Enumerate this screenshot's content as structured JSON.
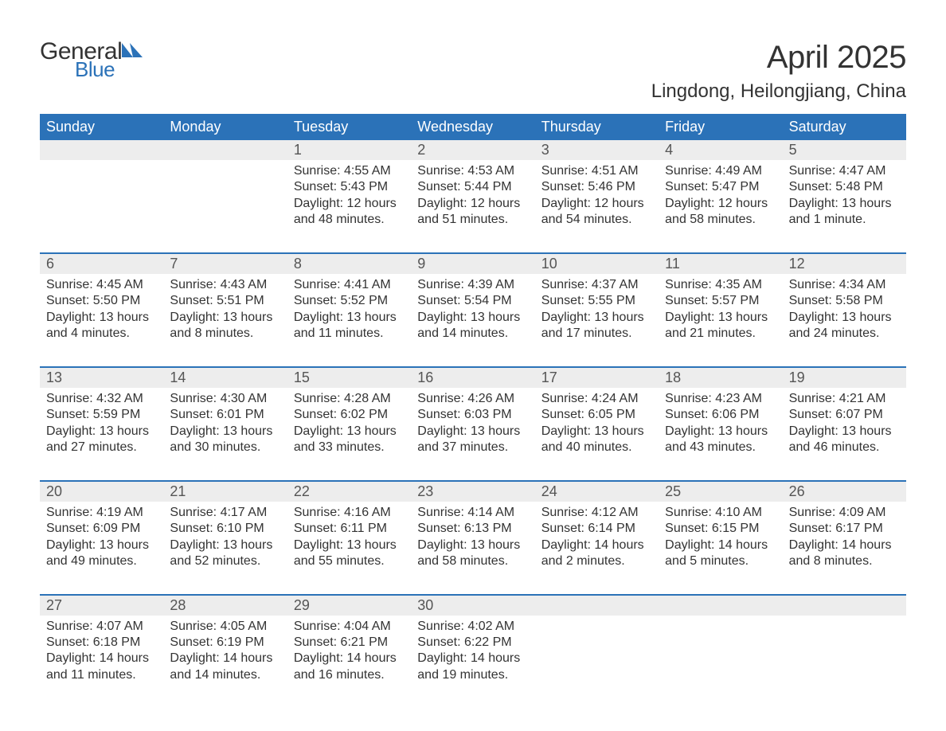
{
  "logo": {
    "word1": "General",
    "word2": "Blue",
    "icon_color": "#2b72b8"
  },
  "title": "April 2025",
  "location": "Lingdong, Heilongjiang, China",
  "colors": {
    "header_bg": "#2b72b8",
    "header_text": "#ffffff",
    "strip_bg": "#ededed",
    "body_text": "#333333",
    "date_text": "#555555",
    "rule": "#2b72b8",
    "page_bg": "#ffffff"
  },
  "day_headers": [
    "Sunday",
    "Monday",
    "Tuesday",
    "Wednesday",
    "Thursday",
    "Friday",
    "Saturday"
  ],
  "weeks": [
    [
      null,
      null,
      {
        "d": "1",
        "sr": "Sunrise: 4:55 AM",
        "ss": "Sunset: 5:43 PM",
        "dl1": "Daylight: 12 hours",
        "dl2": "and 48 minutes."
      },
      {
        "d": "2",
        "sr": "Sunrise: 4:53 AM",
        "ss": "Sunset: 5:44 PM",
        "dl1": "Daylight: 12 hours",
        "dl2": "and 51 minutes."
      },
      {
        "d": "3",
        "sr": "Sunrise: 4:51 AM",
        "ss": "Sunset: 5:46 PM",
        "dl1": "Daylight: 12 hours",
        "dl2": "and 54 minutes."
      },
      {
        "d": "4",
        "sr": "Sunrise: 4:49 AM",
        "ss": "Sunset: 5:47 PM",
        "dl1": "Daylight: 12 hours",
        "dl2": "and 58 minutes."
      },
      {
        "d": "5",
        "sr": "Sunrise: 4:47 AM",
        "ss": "Sunset: 5:48 PM",
        "dl1": "Daylight: 13 hours",
        "dl2": "and 1 minute."
      }
    ],
    [
      {
        "d": "6",
        "sr": "Sunrise: 4:45 AM",
        "ss": "Sunset: 5:50 PM",
        "dl1": "Daylight: 13 hours",
        "dl2": "and 4 minutes."
      },
      {
        "d": "7",
        "sr": "Sunrise: 4:43 AM",
        "ss": "Sunset: 5:51 PM",
        "dl1": "Daylight: 13 hours",
        "dl2": "and 8 minutes."
      },
      {
        "d": "8",
        "sr": "Sunrise: 4:41 AM",
        "ss": "Sunset: 5:52 PM",
        "dl1": "Daylight: 13 hours",
        "dl2": "and 11 minutes."
      },
      {
        "d": "9",
        "sr": "Sunrise: 4:39 AM",
        "ss": "Sunset: 5:54 PM",
        "dl1": "Daylight: 13 hours",
        "dl2": "and 14 minutes."
      },
      {
        "d": "10",
        "sr": "Sunrise: 4:37 AM",
        "ss": "Sunset: 5:55 PM",
        "dl1": "Daylight: 13 hours",
        "dl2": "and 17 minutes."
      },
      {
        "d": "11",
        "sr": "Sunrise: 4:35 AM",
        "ss": "Sunset: 5:57 PM",
        "dl1": "Daylight: 13 hours",
        "dl2": "and 21 minutes."
      },
      {
        "d": "12",
        "sr": "Sunrise: 4:34 AM",
        "ss": "Sunset: 5:58 PM",
        "dl1": "Daylight: 13 hours",
        "dl2": "and 24 minutes."
      }
    ],
    [
      {
        "d": "13",
        "sr": "Sunrise: 4:32 AM",
        "ss": "Sunset: 5:59 PM",
        "dl1": "Daylight: 13 hours",
        "dl2": "and 27 minutes."
      },
      {
        "d": "14",
        "sr": "Sunrise: 4:30 AM",
        "ss": "Sunset: 6:01 PM",
        "dl1": "Daylight: 13 hours",
        "dl2": "and 30 minutes."
      },
      {
        "d": "15",
        "sr": "Sunrise: 4:28 AM",
        "ss": "Sunset: 6:02 PM",
        "dl1": "Daylight: 13 hours",
        "dl2": "and 33 minutes."
      },
      {
        "d": "16",
        "sr": "Sunrise: 4:26 AM",
        "ss": "Sunset: 6:03 PM",
        "dl1": "Daylight: 13 hours",
        "dl2": "and 37 minutes."
      },
      {
        "d": "17",
        "sr": "Sunrise: 4:24 AM",
        "ss": "Sunset: 6:05 PM",
        "dl1": "Daylight: 13 hours",
        "dl2": "and 40 minutes."
      },
      {
        "d": "18",
        "sr": "Sunrise: 4:23 AM",
        "ss": "Sunset: 6:06 PM",
        "dl1": "Daylight: 13 hours",
        "dl2": "and 43 minutes."
      },
      {
        "d": "19",
        "sr": "Sunrise: 4:21 AM",
        "ss": "Sunset: 6:07 PM",
        "dl1": "Daylight: 13 hours",
        "dl2": "and 46 minutes."
      }
    ],
    [
      {
        "d": "20",
        "sr": "Sunrise: 4:19 AM",
        "ss": "Sunset: 6:09 PM",
        "dl1": "Daylight: 13 hours",
        "dl2": "and 49 minutes."
      },
      {
        "d": "21",
        "sr": "Sunrise: 4:17 AM",
        "ss": "Sunset: 6:10 PM",
        "dl1": "Daylight: 13 hours",
        "dl2": "and 52 minutes."
      },
      {
        "d": "22",
        "sr": "Sunrise: 4:16 AM",
        "ss": "Sunset: 6:11 PM",
        "dl1": "Daylight: 13 hours",
        "dl2": "and 55 minutes."
      },
      {
        "d": "23",
        "sr": "Sunrise: 4:14 AM",
        "ss": "Sunset: 6:13 PM",
        "dl1": "Daylight: 13 hours",
        "dl2": "and 58 minutes."
      },
      {
        "d": "24",
        "sr": "Sunrise: 4:12 AM",
        "ss": "Sunset: 6:14 PM",
        "dl1": "Daylight: 14 hours",
        "dl2": "and 2 minutes."
      },
      {
        "d": "25",
        "sr": "Sunrise: 4:10 AM",
        "ss": "Sunset: 6:15 PM",
        "dl1": "Daylight: 14 hours",
        "dl2": "and 5 minutes."
      },
      {
        "d": "26",
        "sr": "Sunrise: 4:09 AM",
        "ss": "Sunset: 6:17 PM",
        "dl1": "Daylight: 14 hours",
        "dl2": "and 8 minutes."
      }
    ],
    [
      {
        "d": "27",
        "sr": "Sunrise: 4:07 AM",
        "ss": "Sunset: 6:18 PM",
        "dl1": "Daylight: 14 hours",
        "dl2": "and 11 minutes."
      },
      {
        "d": "28",
        "sr": "Sunrise: 4:05 AM",
        "ss": "Sunset: 6:19 PM",
        "dl1": "Daylight: 14 hours",
        "dl2": "and 14 minutes."
      },
      {
        "d": "29",
        "sr": "Sunrise: 4:04 AM",
        "ss": "Sunset: 6:21 PM",
        "dl1": "Daylight: 14 hours",
        "dl2": "and 16 minutes."
      },
      {
        "d": "30",
        "sr": "Sunrise: 4:02 AM",
        "ss": "Sunset: 6:22 PM",
        "dl1": "Daylight: 14 hours",
        "dl2": "and 19 minutes."
      },
      null,
      null,
      null
    ]
  ]
}
